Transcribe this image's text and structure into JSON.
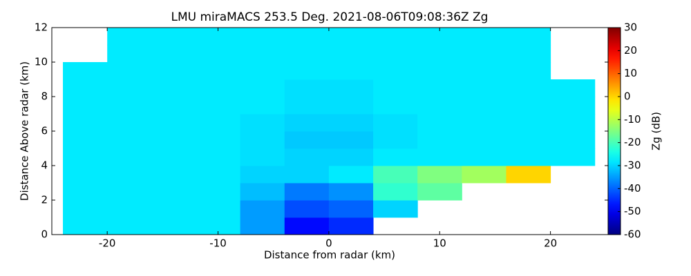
{
  "chart_data": {
    "type": "heatmap",
    "title": "LMU miraMACS 253.5 Deg. 2021-08-06T09:08:36Z  Zg",
    "xlabel": "Distance from radar (km)",
    "ylabel": "Distance Above radar  (km)",
    "colorbar_label": "Zg (dB)",
    "x": [
      -22,
      -18,
      -14,
      -10,
      -6,
      -2,
      2,
      6,
      10,
      14,
      18,
      22
    ],
    "y": [
      0.5,
      1.5,
      2.5,
      3.5,
      4.5,
      5.5,
      6.5,
      7.5,
      8.5,
      9.5,
      10.5,
      11.5
    ],
    "z": [
      [
        -28,
        -28,
        -28,
        -28,
        -35,
        -48,
        -45,
        null,
        null,
        null,
        null,
        null
      ],
      [
        -28,
        -28,
        -28,
        -28,
        -35,
        -42,
        -40,
        -30,
        null,
        null,
        null,
        null
      ],
      [
        -28,
        -28,
        -28,
        -28,
        -32,
        -38,
        -36,
        -22,
        -18,
        null,
        null,
        null
      ],
      [
        -28,
        -28,
        -28,
        -28,
        -30,
        -30,
        -28,
        -20,
        -15,
        -12,
        0,
        null
      ],
      [
        -28,
        -28,
        -28,
        -28,
        -29,
        -30,
        -30,
        -28,
        -28,
        -28,
        -28,
        -28
      ],
      [
        -28,
        -28,
        -28,
        -28,
        -29,
        -31,
        -31,
        -29,
        -28,
        -28,
        -28,
        -28
      ],
      [
        -28,
        -28,
        -28,
        -28,
        -29,
        -30,
        -30,
        -29,
        -28,
        -28,
        -28,
        -28
      ],
      [
        -28,
        -28,
        -28,
        -28,
        -28,
        -29,
        -29,
        -28,
        -28,
        -28,
        -28,
        -28
      ],
      [
        -28,
        -28,
        -28,
        -28,
        -28,
        -29,
        -29,
        -28,
        -28,
        -28,
        -28,
        -28
      ],
      [
        -28,
        -28,
        -28,
        -28,
        -28,
        -28,
        -28,
        -28,
        -28,
        -28,
        -28,
        null
      ],
      [
        null,
        -28,
        -28,
        -28,
        -28,
        -28,
        -28,
        -28,
        -28,
        -28,
        -28,
        null
      ],
      [
        null,
        -28,
        -28,
        -28,
        -28,
        -28,
        -28,
        -28,
        -28,
        -28,
        -28,
        null
      ]
    ],
    "xlim": [
      -25,
      25.2
    ],
    "ylim": [
      0,
      12
    ],
    "xticks": [
      -20,
      -10,
      0,
      10,
      20
    ],
    "yticks": [
      0,
      2,
      4,
      6,
      8,
      10,
      12
    ],
    "clim": [
      -60,
      30
    ],
    "cticks": [
      -60,
      -50,
      -40,
      -30,
      -20,
      -10,
      0,
      10,
      20,
      30
    ],
    "colormap": "jet"
  }
}
